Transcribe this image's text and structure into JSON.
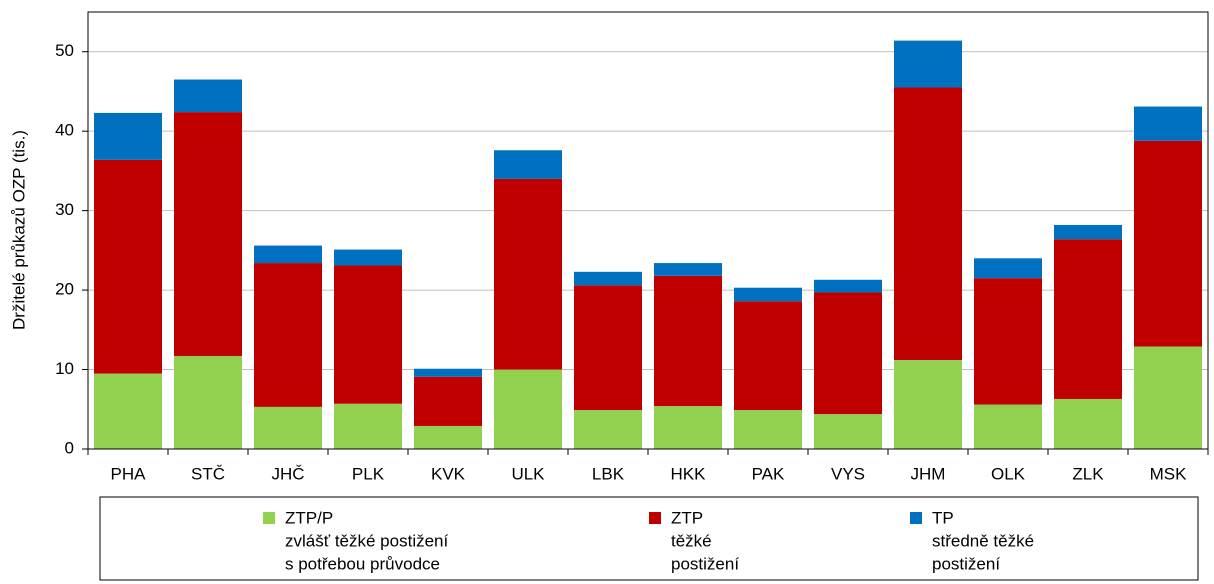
{
  "chart_data": {
    "type": "stacked_bar",
    "y_label": "Držitelé průkazů OZP (tis.)",
    "categories": [
      "PHA",
      "STČ",
      "JHČ",
      "PLK",
      "KVK",
      "ULK",
      "LBK",
      "HKK",
      "PAK",
      "VYS",
      "JHM",
      "OLK",
      "ZLK",
      "MSK"
    ],
    "series": [
      {
        "name": "ZTP/P",
        "description": [
          "zvlášť těžké postižení",
          "s potřebou průvodce"
        ],
        "color": "#92d050",
        "values": [
          9.5,
          11.7,
          5.3,
          5.7,
          2.9,
          10.0,
          4.9,
          5.4,
          4.9,
          4.4,
          11.2,
          5.6,
          6.3,
          12.9
        ]
      },
      {
        "name": "ZTP",
        "description": [
          "těžké",
          "postižení"
        ],
        "color": "#c00000",
        "values": [
          26.9,
          30.7,
          18.1,
          17.4,
          6.2,
          24.0,
          15.7,
          16.4,
          13.7,
          15.3,
          34.3,
          15.9,
          20.1,
          25.9
        ]
      },
      {
        "name": "TP",
        "description": [
          "středně těžké",
          "postižení"
        ],
        "color": "#0070c0",
        "values": [
          5.9,
          4.1,
          2.2,
          2.0,
          1.0,
          3.6,
          1.7,
          1.6,
          1.7,
          1.6,
          5.9,
          2.5,
          1.8,
          4.3
        ]
      }
    ],
    "ylim": [
      0,
      55
    ],
    "yticks": [
      0,
      10,
      20,
      30,
      40,
      50
    ],
    "grid": true
  }
}
